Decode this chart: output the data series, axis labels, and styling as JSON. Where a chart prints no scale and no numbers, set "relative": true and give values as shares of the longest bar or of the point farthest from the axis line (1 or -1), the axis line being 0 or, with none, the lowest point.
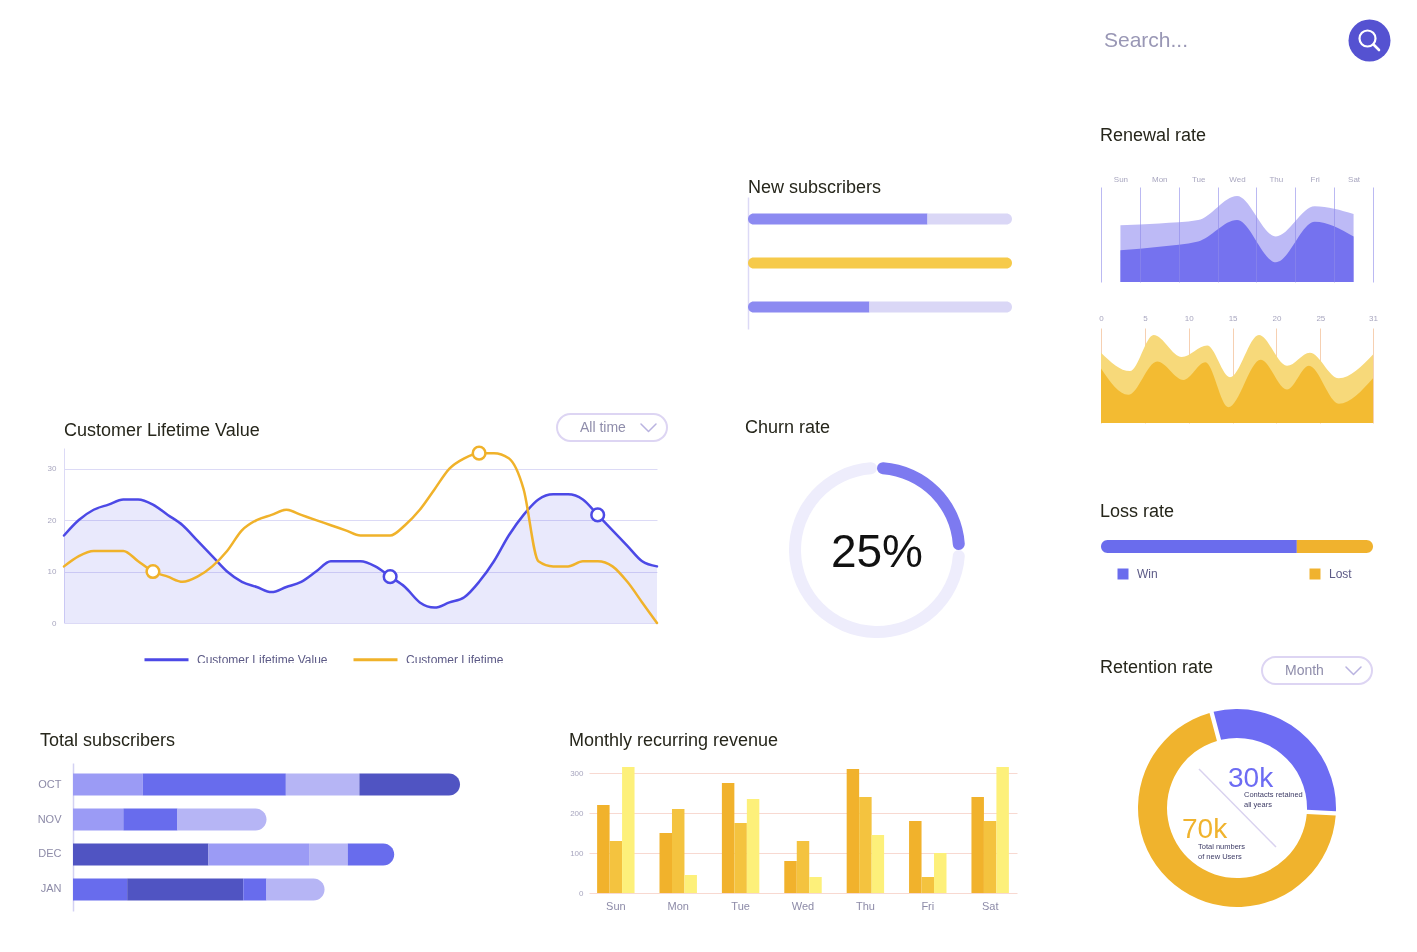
{
  "chart_data": [
    {
      "type": "other",
      "annotations": [
        "Search..."
      ]
    },
    {
      "type": "bar",
      "title": "New subscribers",
      "orientation": "horizontal",
      "stacked": true,
      "relative": true,
      "tick_labels": false,
      "categories": [
        null,
        null,
        null
      ],
      "series": [
        {
          "color": "#8c8af1",
          "values": [
            0.68,
            null,
            0.46
          ]
        },
        {
          "color": "#f6ca4a",
          "values": [
            null,
            1,
            null
          ]
        },
        {
          "color": "#dad7f6",
          "values": [
            0.32,
            null,
            0.54
          ]
        }
      ]
    },
    {
      "type": "area",
      "title": "Renewal rate",
      "relative": true,
      "tick_labels": "x",
      "grid": "x",
      "categories": [
        "Sun",
        "Mon",
        "Tue",
        "Wed",
        "Thu",
        "Fri",
        "Sat"
      ],
      "series": [
        {
          "color": "#bdbaf6",
          "values": [
            0.66,
            0.68,
            0.72,
            1,
            0.53,
            0.88,
            0.79
          ]
        },
        {
          "color": "#7572ef",
          "values": [
            0.37,
            0.41,
            0.47,
            0.72,
            0.23,
            0.7,
            0.53
          ]
        }
      ]
    },
    {
      "type": "area",
      "relative": true,
      "tick_labels": "x",
      "grid": "x",
      "xlim": [
        0,
        31
      ],
      "xticks": [
        0,
        5,
        10,
        15,
        20,
        25,
        31
      ],
      "series": [
        {
          "color": "#f7d97a",
          "x": [
            0,
            3.3,
            6,
            9.2,
            12.1,
            14.7,
            18,
            21.2,
            23.8,
            27.1,
            31
          ],
          "values": [
            0.8,
            0.59,
            1,
            0.75,
            0.88,
            0.52,
            1,
            0.65,
            0.8,
            0.51,
            0.78
          ]
        },
        {
          "color": "#f3bb32",
          "x": [
            0,
            3.1,
            6.4,
            9.4,
            11.9,
            14.5,
            18.2,
            21.2,
            23.7,
            27.1,
            31
          ],
          "values": [
            0.62,
            0.32,
            0.7,
            0.49,
            0.69,
            0.18,
            0.72,
            0.38,
            0.65,
            0.22,
            0.51
          ]
        }
      ]
    },
    {
      "type": "line",
      "title": "Customer Lifetime Value",
      "annotations": [
        "All time"
      ],
      "ylim": [
        0,
        34
      ],
      "yticks": [
        0,
        10,
        20,
        30
      ],
      "grid": "y",
      "tick_labels": "y",
      "legend": "bottom",
      "categories": [
        null,
        null,
        null,
        null,
        null,
        null,
        null,
        null,
        null,
        null,
        null,
        null,
        null,
        null,
        null,
        null,
        null,
        null,
        null,
        null,
        null,
        null,
        null,
        null,
        null,
        null,
        null,
        null,
        null,
        null,
        null,
        null,
        null,
        null,
        null,
        null,
        null,
        null,
        null,
        null,
        null
      ],
      "series": [
        {
          "name": "Customer Lifetime Value",
          "type": "area",
          "color": "#4c49e6",
          "values": [
            17,
            20,
            22,
            23,
            24,
            24,
            23,
            21,
            19,
            16,
            13,
            10,
            8,
            7,
            6,
            7,
            8,
            10,
            12,
            12,
            12,
            11,
            9,
            7,
            4,
            3,
            4,
            5,
            8,
            12,
            17,
            21,
            24,
            25,
            25,
            24,
            21,
            18,
            15,
            12,
            11
          ]
        },
        {
          "name": "Customer Lifetime",
          "color": "#f0b22a",
          "values": [
            11,
            13,
            14,
            14,
            14,
            12,
            10,
            9,
            8,
            9,
            11,
            14,
            18,
            20,
            21,
            22,
            21,
            20,
            19,
            18,
            17,
            17,
            17,
            19,
            22,
            26,
            30,
            32,
            33,
            33,
            32,
            26,
            12,
            11,
            11,
            12,
            12,
            11,
            8,
            4,
            0
          ]
        },
        {
          "type": "scatter",
          "marker": "circle",
          "color": "#4c49e6",
          "values": [
            null,
            null,
            null,
            null,
            null,
            null,
            null,
            null,
            null,
            null,
            null,
            null,
            null,
            null,
            null,
            null,
            null,
            null,
            null,
            null,
            null,
            null,
            9,
            null,
            null,
            null,
            null,
            null,
            null,
            null,
            null,
            null,
            null,
            null,
            null,
            null,
            21,
            null,
            null,
            null,
            null
          ]
        },
        {
          "type": "scatter",
          "marker": "circle",
          "color": "#f0b22a",
          "values": [
            null,
            null,
            null,
            null,
            null,
            null,
            10,
            null,
            null,
            null,
            null,
            null,
            null,
            null,
            null,
            null,
            null,
            null,
            null,
            null,
            null,
            null,
            null,
            null,
            null,
            null,
            null,
            null,
            33,
            null,
            null,
            null,
            null,
            null,
            null,
            null,
            null,
            null,
            null,
            null,
            null
          ]
        }
      ]
    },
    {
      "type": "donut",
      "title": "Churn rate",
      "annotations": [
        "25%"
      ],
      "categories": [
        null,
        null
      ],
      "values": [
        25,
        75
      ],
      "colors": [
        "#7d7af0",
        "#eeedfc"
      ]
    },
    {
      "type": "bar",
      "title": "Loss rate",
      "orientation": "horizontal",
      "stacked": true,
      "relative": true,
      "tick_labels": false,
      "legend": "bottom",
      "categories": [
        null
      ],
      "series": [
        {
          "name": "Win",
          "color": "#6a6ced",
          "values": [
            0.72
          ]
        },
        {
          "name": "Lost",
          "color": "#f0b22e",
          "values": [
            0.28
          ]
        }
      ]
    },
    {
      "type": "donut",
      "title": "Retention rate",
      "annotations": [
        "Month"
      ],
      "categories": [
        "Contacts retained all years",
        "Total numbers of new Users"
      ],
      "values": [
        30,
        70
      ],
      "colors": [
        "#6d6cf3",
        "#f0b32d"
      ],
      "value_labels": [
        "30k",
        "70k"
      ]
    },
    {
      "type": "bar",
      "title": "Total subscribers",
      "orientation": "horizontal",
      "stacked": true,
      "relative": true,
      "tick_labels": "y",
      "categories": [
        "OCT",
        "NOV",
        "DEC",
        "JAN"
      ],
      "series": [
        {
          "colors": [
            "#9b9bf5",
            "#9b9bf5",
            "#5054c2",
            "#686ced"
          ],
          "values": [
            0.18,
            0.13,
            0.35,
            0.14
          ]
        },
        {
          "colors": [
            "#686ced",
            "#686ced",
            "#9b9bf5",
            "#5054c2"
          ],
          "values": [
            0.37,
            0.14,
            0.26,
            0.3
          ]
        },
        {
          "colors": [
            "#b6b5f5",
            "#b6b5f5",
            "#b6b5f5",
            "#686ced"
          ],
          "values": [
            0.19,
            0.23,
            0.1,
            0.06
          ]
        },
        {
          "colors": [
            "#5054c2",
            null,
            "#686ced",
            "#b6b5f5"
          ],
          "values": [
            0.26,
            null,
            0.12,
            0.15
          ]
        }
      ]
    },
    {
      "type": "bar",
      "title": "Monthly recurring revenue",
      "categories": [
        "Sun",
        "Mon",
        "Tue",
        "Wed",
        "Thu",
        "Fri",
        "Sat"
      ],
      "ylim": [
        0,
        320
      ],
      "yticks": [
        0,
        100,
        200,
        300
      ],
      "grid": "y",
      "series": [
        {
          "color": "#f1b22c",
          "values": [
            220,
            150,
            275,
            80,
            310,
            180,
            240
          ]
        },
        {
          "color": "#f4c33f",
          "values": [
            130,
            210,
            175,
            130,
            240,
            40,
            180
          ]
        },
        {
          "color": "#fdf07a",
          "values": [
            315,
            45,
            235,
            40,
            145,
            100,
            315
          ]
        }
      ]
    }
  ]
}
